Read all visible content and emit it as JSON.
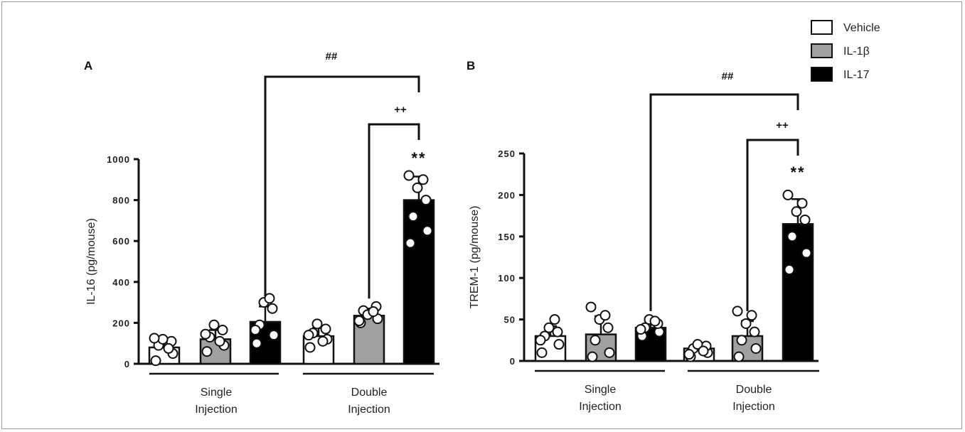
{
  "legend": [
    {
      "label": "Vehicle",
      "color": "#ffffff"
    },
    {
      "label": "IL-1β",
      "color": "#a0a0a0"
    },
    {
      "label": "IL-17",
      "color": "#000000"
    }
  ],
  "group_labels": {
    "single_line1": "Single",
    "single_line2": "Injection",
    "double_line1": "Double",
    "double_line2": "Injection"
  },
  "chart_data": [
    {
      "type": "bar",
      "panel": "A",
      "ylabel": "IL-16  (pg/mouse)",
      "ylim": [
        0,
        1000
      ],
      "yticks": [
        0,
        200,
        400,
        600,
        800,
        1000
      ],
      "series": [
        {
          "name": "Vehicle",
          "color": "#ffffff",
          "single": 80,
          "double": 135,
          "single_sd": 35,
          "double_sd": 40,
          "single_points": [
            15,
            50,
            90,
            110,
            120,
            75,
            125
          ],
          "double_points": [
            80,
            120,
            150,
            170,
            195,
            110,
            140
          ]
        },
        {
          "name": "IL-1β",
          "color": "#a0a0a0",
          "single": 120,
          "double": 235,
          "single_sd": 45,
          "double_sd": 35,
          "single_points": [
            60,
            90,
            130,
            165,
            190,
            110,
            145
          ],
          "double_points": [
            200,
            220,
            260,
            280,
            240,
            255,
            210
          ]
        },
        {
          "name": "IL-17",
          "color": "#000000",
          "single": 205,
          "double": 800,
          "single_sd": 75,
          "double_sd": 115,
          "single_points": [
            100,
            140,
            190,
            270,
            300,
            320,
            165
          ],
          "double_points": [
            590,
            650,
            720,
            800,
            860,
            900,
            920
          ]
        }
      ],
      "significance": [
        {
          "text": "##",
          "from": "single-IL-17",
          "to": "double-IL-17"
        },
        {
          "text": "++",
          "from": "double-IL-1β",
          "to": "double-IL-17"
        },
        {
          "text": "**",
          "on": "double-IL-17"
        }
      ]
    },
    {
      "type": "bar",
      "panel": "B",
      "ylabel": "TREM-1  (pg/mouse)",
      "ylim": [
        0,
        250
      ],
      "yticks": [
        0,
        50,
        100,
        150,
        200,
        250
      ],
      "series": [
        {
          "name": "Vehicle",
          "color": "#ffffff",
          "single": 30,
          "double": 15,
          "single_sd": 12,
          "double_sd": 5,
          "single_points": [
            10,
            20,
            30,
            35,
            40,
            50,
            25
          ],
          "double_points": [
            5,
            10,
            15,
            18,
            20,
            12,
            8
          ]
        },
        {
          "name": "IL-1β",
          "color": "#a0a0a0",
          "single": 32,
          "double": 30,
          "single_sd": 22,
          "double_sd": 18,
          "single_points": [
            5,
            10,
            25,
            40,
            50,
            55,
            65
          ],
          "double_points": [
            5,
            15,
            25,
            35,
            45,
            55,
            60
          ]
        },
        {
          "name": "IL-17",
          "color": "#000000",
          "single": 40,
          "double": 165,
          "single_sd": 8,
          "double_sd": 30,
          "single_points": [
            30,
            35,
            40,
            45,
            50,
            48,
            38
          ],
          "double_points": [
            110,
            130,
            150,
            170,
            180,
            190,
            200
          ]
        }
      ],
      "significance": [
        {
          "text": "##",
          "from": "single-IL-17",
          "to": "double-IL-17"
        },
        {
          "text": "++",
          "from": "double-IL-1β",
          "to": "double-IL-17"
        },
        {
          "text": "**",
          "on": "double-IL-17"
        }
      ]
    }
  ]
}
